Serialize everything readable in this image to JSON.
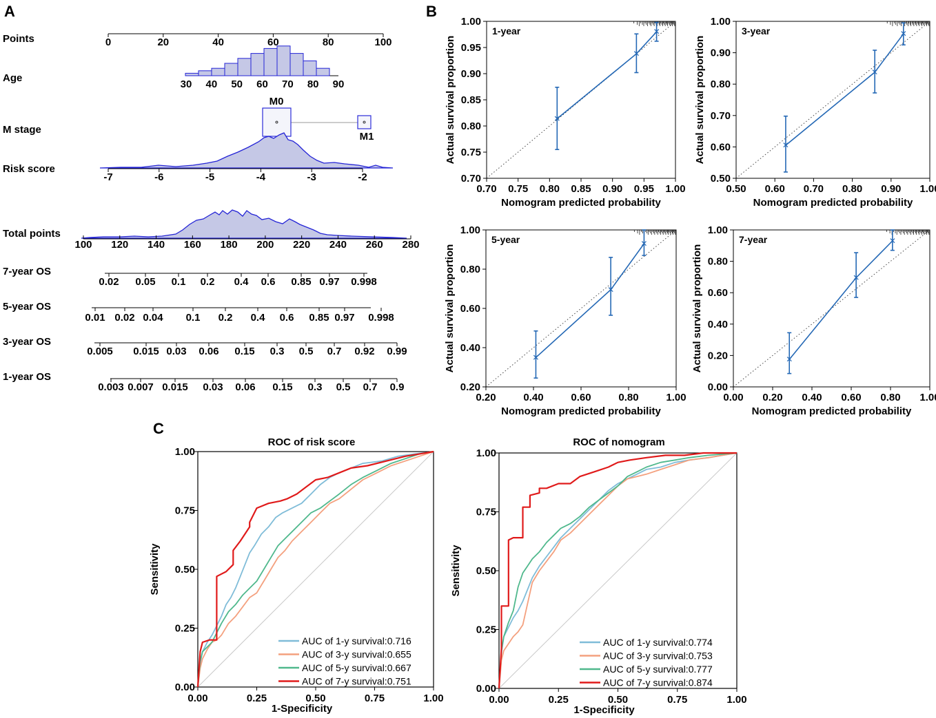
{
  "panels": {
    "a": "A",
    "b": "B",
    "c": "C"
  },
  "nomogram": {
    "rows": [
      {
        "key": "points",
        "label": "Points"
      },
      {
        "key": "age",
        "label": "Age"
      },
      {
        "key": "m_stage",
        "label": "M stage"
      },
      {
        "key": "risk",
        "label": "Risk score"
      },
      {
        "key": "total",
        "label": "Total points"
      },
      {
        "key": "os7",
        "label": "7-year OS"
      },
      {
        "key": "os5",
        "label": "5-year OS"
      },
      {
        "key": "os3",
        "label": "3-year OS"
      },
      {
        "key": "os1",
        "label": "1-year OS"
      }
    ],
    "points_ticks": [
      "0",
      "20",
      "40",
      "60",
      "80",
      "100"
    ],
    "age_ticks": [
      "30",
      "40",
      "50",
      "60",
      "70",
      "80",
      "90"
    ],
    "age_hist": [
      1,
      2,
      3,
      5,
      7,
      9,
      11,
      12,
      9,
      6,
      3
    ],
    "m_stage": {
      "m0": "M0",
      "m1": "M1"
    },
    "risk_ticks": [
      "-7",
      "-6",
      "-5",
      "-4",
      "-3",
      "-2"
    ],
    "total_ticks": [
      "100",
      "120",
      "140",
      "160",
      "180",
      "200",
      "220",
      "240",
      "260",
      "280"
    ],
    "os7_ticks": [
      "0.02",
      "0.05",
      "0.1",
      "0.2",
      "0.4",
      "0.6",
      "0.85",
      "0.97",
      "0.998"
    ],
    "os5_ticks": [
      "0.01",
      "0.02",
      "0.04",
      "0.1",
      "0.2",
      "0.4",
      "0.6",
      "0.85",
      "0.97",
      "0.998"
    ],
    "os3_ticks": [
      "0.005",
      "0.015",
      "0.03",
      "0.06",
      "0.15",
      "0.3",
      "0.5",
      "0.7",
      "0.92",
      "0.99"
    ],
    "os1_ticks": [
      "0.003",
      "0.007",
      "0.015",
      "0.03",
      "0.06",
      "0.15",
      "0.3",
      "0.5",
      "0.7",
      "0.9"
    ]
  },
  "chart_data": [
    {
      "type": "line",
      "id": "calib-1y",
      "title": "1-year",
      "xlabel": "Nomogram predicted probability",
      "ylabel": "Actual survival proportion",
      "xlim": [
        0.7,
        1.0
      ],
      "ylim": [
        0.7,
        1.0
      ],
      "xticks": [
        "0.70",
        "0.75",
        "0.80",
        "0.85",
        "0.90",
        "0.95",
        "1.00"
      ],
      "yticks": [
        "0.70",
        "0.75",
        "0.80",
        "0.85",
        "0.90",
        "0.95",
        "1.00"
      ],
      "x": [
        0.812,
        0.938,
        0.97
      ],
      "y": [
        0.814,
        0.938,
        0.98
      ],
      "lower": [
        0.755,
        0.902,
        0.962
      ],
      "upper": [
        0.874,
        0.976,
        0.998
      ]
    },
    {
      "type": "line",
      "id": "calib-3y",
      "title": "3-year",
      "xlabel": "Nomogram predicted probability",
      "ylabel": "Actual survival proportion",
      "xlim": [
        0.5,
        1.0
      ],
      "ylim": [
        0.5,
        1.0
      ],
      "xticks": [
        "0.50",
        "0.60",
        "0.70",
        "0.80",
        "0.90",
        "1.00"
      ],
      "yticks": [
        "0.50",
        "0.60",
        "0.70",
        "0.80",
        "0.90",
        "1.00"
      ],
      "x": [
        0.628,
        0.858,
        0.932
      ],
      "y": [
        0.605,
        0.838,
        0.96
      ],
      "lower": [
        0.52,
        0.772,
        0.925
      ],
      "upper": [
        0.698,
        0.908,
        0.995
      ]
    },
    {
      "type": "line",
      "id": "calib-5y",
      "title": "5-year",
      "xlabel": "Nomogram predicted probability",
      "ylabel": "Actual survival proportion",
      "xlim": [
        0.2,
        1.0
      ],
      "ylim": [
        0.2,
        1.0
      ],
      "xticks": [
        "0.20",
        "0.40",
        "0.60",
        "0.80",
        "1.00"
      ],
      "yticks": [
        "0.20",
        "0.40",
        "0.60",
        "0.80",
        "1.00"
      ],
      "x": [
        0.41,
        0.725,
        0.865
      ],
      "y": [
        0.35,
        0.695,
        0.93
      ],
      "lower": [
        0.245,
        0.565,
        0.87
      ],
      "upper": [
        0.485,
        0.86,
        1.0
      ]
    },
    {
      "type": "line",
      "id": "calib-7y",
      "title": "7-year",
      "xlabel": "Nomogram predicted probability",
      "ylabel": "Actual survival proportion",
      "xlim": [
        0.0,
        1.0
      ],
      "ylim": [
        0.0,
        1.0
      ],
      "xticks": [
        "0.00",
        "0.20",
        "0.40",
        "0.60",
        "0.80",
        "1.00"
      ],
      "yticks": [
        "0.00",
        "0.20",
        "0.40",
        "0.60",
        "0.80",
        "1.00"
      ],
      "x": [
        0.285,
        0.625,
        0.81
      ],
      "y": [
        0.175,
        0.695,
        0.93
      ],
      "lower": [
        0.085,
        0.57,
        0.87
      ],
      "upper": [
        0.345,
        0.855,
        1.0
      ]
    },
    {
      "type": "line",
      "id": "roc-risk",
      "title": "ROC of risk score",
      "xlabel": "1-Specificity",
      "ylabel": "Sensitivity",
      "xlim": [
        0,
        1
      ],
      "ylim": [
        0,
        1
      ],
      "xticks": [
        "0.00",
        "0.25",
        "0.50",
        "0.75",
        "1.00"
      ],
      "yticks": [
        "0.00",
        "0.25",
        "0.50",
        "0.75",
        "1.00"
      ],
      "series": [
        {
          "name": "AUC of 1-y survival:0.716",
          "color": "#7fbcd8",
          "x": [
            0,
            0.01,
            0.02,
            0.04,
            0.06,
            0.08,
            0.1,
            0.12,
            0.14,
            0.16,
            0.18,
            0.2,
            0.22,
            0.24,
            0.27,
            0.3,
            0.33,
            0.36,
            0.4,
            0.44,
            0.48,
            0.52,
            0.56,
            0.6,
            0.65,
            0.7,
            0.78,
            0.85,
            0.92,
            1.0
          ],
          "y": [
            0,
            0.1,
            0.15,
            0.19,
            0.22,
            0.26,
            0.3,
            0.35,
            0.38,
            0.42,
            0.47,
            0.52,
            0.57,
            0.6,
            0.65,
            0.68,
            0.72,
            0.74,
            0.76,
            0.78,
            0.82,
            0.86,
            0.89,
            0.91,
            0.93,
            0.95,
            0.96,
            0.98,
            0.99,
            1.0
          ]
        },
        {
          "name": "AUC of 3-y survival:0.655",
          "color": "#f4a07e",
          "x": [
            0,
            0.01,
            0.02,
            0.04,
            0.06,
            0.08,
            0.1,
            0.13,
            0.16,
            0.19,
            0.22,
            0.25,
            0.28,
            0.31,
            0.34,
            0.37,
            0.4,
            0.44,
            0.48,
            0.52,
            0.56,
            0.6,
            0.65,
            0.7,
            0.76,
            0.82,
            0.88,
            0.94,
            1.0
          ],
          "y": [
            0,
            0.08,
            0.12,
            0.16,
            0.19,
            0.2,
            0.22,
            0.27,
            0.3,
            0.34,
            0.38,
            0.4,
            0.45,
            0.5,
            0.55,
            0.58,
            0.62,
            0.66,
            0.7,
            0.74,
            0.78,
            0.8,
            0.84,
            0.88,
            0.91,
            0.94,
            0.96,
            0.98,
            1.0
          ]
        },
        {
          "name": "AUC of 5-y survival:0.667",
          "color": "#4fb88c",
          "x": [
            0,
            0.01,
            0.02,
            0.04,
            0.06,
            0.08,
            0.1,
            0.13,
            0.16,
            0.19,
            0.22,
            0.25,
            0.28,
            0.31,
            0.34,
            0.37,
            0.4,
            0.44,
            0.48,
            0.52,
            0.56,
            0.6,
            0.65,
            0.7,
            0.76,
            0.82,
            0.88,
            0.94,
            1.0
          ],
          "y": [
            0,
            0.11,
            0.15,
            0.17,
            0.19,
            0.23,
            0.27,
            0.32,
            0.35,
            0.39,
            0.42,
            0.45,
            0.5,
            0.55,
            0.6,
            0.63,
            0.66,
            0.7,
            0.74,
            0.76,
            0.79,
            0.82,
            0.86,
            0.89,
            0.92,
            0.95,
            0.97,
            0.99,
            1.0
          ]
        },
        {
          "name": "AUC of 7-y survival:0.751",
          "color": "#e01a1a",
          "x": [
            0,
            0.01,
            0.02,
            0.05,
            0.08,
            0.08,
            0.12,
            0.15,
            0.15,
            0.18,
            0.22,
            0.22,
            0.25,
            0.3,
            0.35,
            0.38,
            0.42,
            0.46,
            0.5,
            0.55,
            0.6,
            0.65,
            0.72,
            0.8,
            0.88,
            0.94,
            1.0
          ],
          "y": [
            0,
            0.15,
            0.19,
            0.2,
            0.2,
            0.47,
            0.49,
            0.52,
            0.58,
            0.62,
            0.68,
            0.7,
            0.76,
            0.78,
            0.79,
            0.8,
            0.82,
            0.85,
            0.88,
            0.89,
            0.91,
            0.93,
            0.94,
            0.96,
            0.98,
            0.99,
            1.0
          ]
        }
      ]
    },
    {
      "type": "line",
      "id": "roc-nomo",
      "title": "ROC of nomogram",
      "xlabel": "1-Specificity",
      "ylabel": "Sensitivity",
      "xlim": [
        0,
        1
      ],
      "ylim": [
        0,
        1
      ],
      "xticks": [
        "0.00",
        "0.25",
        "0.50",
        "0.75",
        "1.00"
      ],
      "yticks": [
        "0.00",
        "0.25",
        "0.50",
        "0.75",
        "1.00"
      ],
      "series": [
        {
          "name": "AUC of 1-y survival:0.774",
          "color": "#7fbcd8",
          "x": [
            0,
            0.01,
            0.02,
            0.04,
            0.06,
            0.08,
            0.1,
            0.12,
            0.14,
            0.17,
            0.2,
            0.23,
            0.26,
            0.3,
            0.34,
            0.38,
            0.42,
            0.46,
            0.5,
            0.54,
            0.58,
            0.62,
            0.68,
            0.74,
            0.8,
            0.88,
            0.94,
            1.0
          ],
          "y": [
            0,
            0.15,
            0.22,
            0.26,
            0.3,
            0.33,
            0.37,
            0.42,
            0.47,
            0.52,
            0.56,
            0.6,
            0.64,
            0.68,
            0.72,
            0.76,
            0.8,
            0.84,
            0.87,
            0.89,
            0.91,
            0.93,
            0.94,
            0.96,
            0.97,
            0.98,
            0.99,
            1.0
          ]
        },
        {
          "name": "AUC of 3-y survival:0.753",
          "color": "#f4a07e",
          "x": [
            0,
            0.01,
            0.02,
            0.04,
            0.06,
            0.08,
            0.1,
            0.12,
            0.14,
            0.17,
            0.2,
            0.23,
            0.26,
            0.3,
            0.34,
            0.38,
            0.42,
            0.46,
            0.5,
            0.54,
            0.58,
            0.62,
            0.68,
            0.74,
            0.8,
            0.88,
            0.94,
            1.0
          ],
          "y": [
            0,
            0.12,
            0.16,
            0.19,
            0.22,
            0.24,
            0.27,
            0.36,
            0.45,
            0.5,
            0.54,
            0.58,
            0.63,
            0.66,
            0.7,
            0.74,
            0.78,
            0.82,
            0.86,
            0.89,
            0.9,
            0.91,
            0.93,
            0.95,
            0.97,
            0.98,
            0.99,
            1.0
          ]
        },
        {
          "name": "AUC of 5-y survival:0.777",
          "color": "#4fb88c",
          "x": [
            0,
            0.01,
            0.02,
            0.04,
            0.06,
            0.08,
            0.1,
            0.12,
            0.14,
            0.17,
            0.2,
            0.23,
            0.26,
            0.3,
            0.34,
            0.38,
            0.42,
            0.46,
            0.5,
            0.54,
            0.58,
            0.62,
            0.68,
            0.74,
            0.8,
            0.88,
            0.94,
            1.0
          ],
          "y": [
            0,
            0.16,
            0.22,
            0.28,
            0.33,
            0.43,
            0.49,
            0.52,
            0.55,
            0.58,
            0.62,
            0.65,
            0.68,
            0.7,
            0.73,
            0.77,
            0.8,
            0.83,
            0.86,
            0.9,
            0.92,
            0.94,
            0.96,
            0.97,
            0.98,
            0.99,
            0.995,
            1.0
          ]
        },
        {
          "name": "AUC of 7-y survival:0.874",
          "color": "#e01a1a",
          "x": [
            0,
            0.01,
            0.01,
            0.04,
            0.04,
            0.06,
            0.1,
            0.1,
            0.13,
            0.13,
            0.17,
            0.17,
            0.2,
            0.25,
            0.3,
            0.34,
            0.4,
            0.46,
            0.5,
            0.55,
            0.62,
            0.7,
            0.78,
            0.86,
            0.94,
            1.0
          ],
          "y": [
            0,
            0.17,
            0.35,
            0.35,
            0.63,
            0.64,
            0.64,
            0.77,
            0.77,
            0.82,
            0.83,
            0.85,
            0.85,
            0.87,
            0.87,
            0.9,
            0.92,
            0.94,
            0.96,
            0.97,
            0.98,
            0.99,
            0.99,
            1.0,
            1.0,
            1.0
          ]
        }
      ]
    }
  ]
}
